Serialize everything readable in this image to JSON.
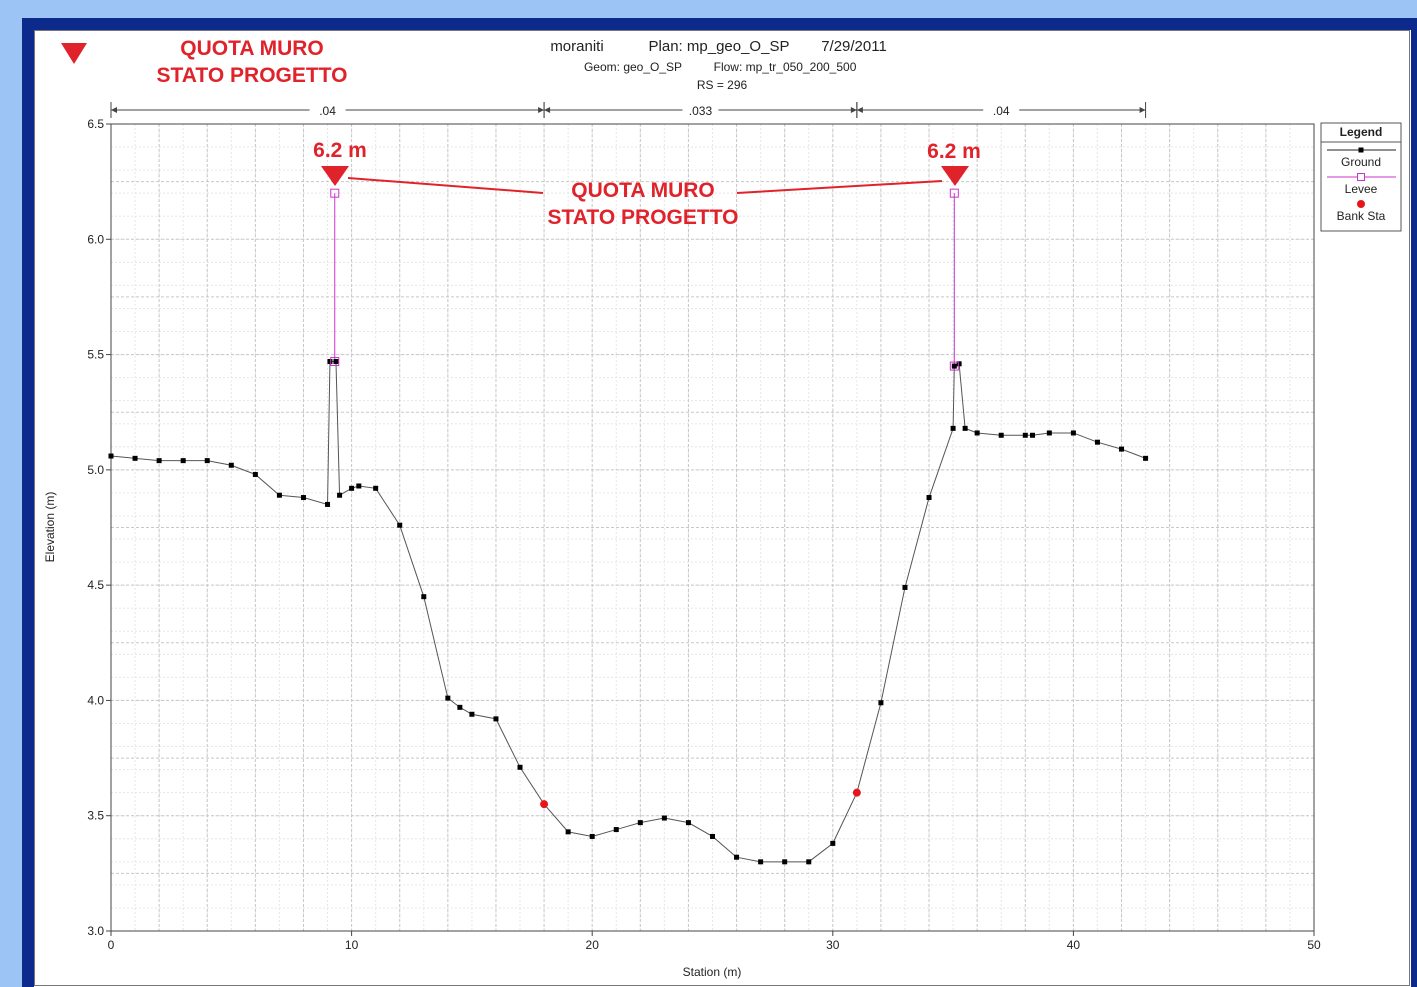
{
  "header": {
    "project": "moraniti",
    "plan": "Plan: mp_geo_O_SP",
    "date": "7/29/2011",
    "geom": "Geom: geo_O_SP",
    "flow": "Flow: mp_tr_050_200_500",
    "rs": "RS = 296"
  },
  "annotation": {
    "top_left_line1": "QUOTA MURO",
    "top_left_line2": "STATO PROGETTO",
    "center_line1": "QUOTA MURO",
    "center_line2": "STATO PROGETTO",
    "left_label": "6.2 m",
    "right_label": "6.2 m",
    "color": "#e0232b"
  },
  "legend": {
    "title": "Legend",
    "items": [
      "Ground",
      "Levee",
      "Bank Sta"
    ]
  },
  "chart_data": {
    "type": "line",
    "xlabel": "Station (m)",
    "ylabel": "Elevation (m)",
    "xlim": [
      0,
      50
    ],
    "ylim": [
      3.0,
      6.5
    ],
    "x_ticks": [
      "0",
      "10",
      "20",
      "30",
      "40",
      "50"
    ],
    "y_ticks": [
      "3.0",
      "3.5",
      "4.0",
      "4.5",
      "5.0",
      "5.5",
      "6.0",
      "6.5"
    ],
    "x_tick_values": [
      0,
      10,
      20,
      30,
      40,
      50
    ],
    "y_tick_values": [
      3.0,
      3.5,
      4.0,
      4.5,
      5.0,
      5.5,
      6.0,
      6.5
    ],
    "grid": true,
    "manning_n": [
      {
        "label": ".04",
        "x_start": 0,
        "x_end": 18
      },
      {
        "label": ".033",
        "x_start": 18,
        "x_end": 31
      },
      {
        "label": ".04",
        "x_start": 31,
        "x_end": 43
      }
    ],
    "series": [
      {
        "name": "Ground",
        "color": "#000000",
        "x": [
          0,
          1,
          2,
          3,
          4,
          5,
          6,
          7,
          8,
          9,
          9.1,
          9.35,
          9.5,
          10,
          10.3,
          11,
          12,
          13,
          14,
          14.5,
          15,
          16,
          17,
          18,
          19,
          20,
          21,
          22,
          23,
          24,
          25,
          26,
          27,
          28,
          29,
          30,
          31,
          32,
          33,
          34,
          35,
          35.05,
          35.25,
          35.5,
          36,
          37,
          38,
          38.3,
          39,
          40,
          41,
          42,
          43
        ],
        "y": [
          5.06,
          5.05,
          5.04,
          5.04,
          5.04,
          5.02,
          4.98,
          4.89,
          4.88,
          4.85,
          5.47,
          5.47,
          4.89,
          4.92,
          4.93,
          4.92,
          4.76,
          4.45,
          4.01,
          3.97,
          3.94,
          3.92,
          3.71,
          3.55,
          3.43,
          3.41,
          3.44,
          3.47,
          3.49,
          3.47,
          3.41,
          3.32,
          3.3,
          3.3,
          3.3,
          3.38,
          3.6,
          3.99,
          4.49,
          4.88,
          5.18,
          5.45,
          5.46,
          5.18,
          5.16,
          5.15,
          5.15,
          5.15,
          5.16,
          5.16,
          5.12,
          5.09,
          5.05
        ]
      },
      {
        "name": "Levee",
        "color": "#cc33cc",
        "segments": [
          {
            "x": [
              9.3,
              9.3
            ],
            "y": [
              5.47,
              6.2
            ]
          },
          {
            "x": [
              35.05,
              35.05
            ],
            "y": [
              5.45,
              6.2
            ]
          }
        ]
      },
      {
        "name": "Bank Sta",
        "color": "#e8141c",
        "x": [
          18,
          31
        ],
        "y": [
          3.55,
          3.6
        ]
      }
    ]
  }
}
